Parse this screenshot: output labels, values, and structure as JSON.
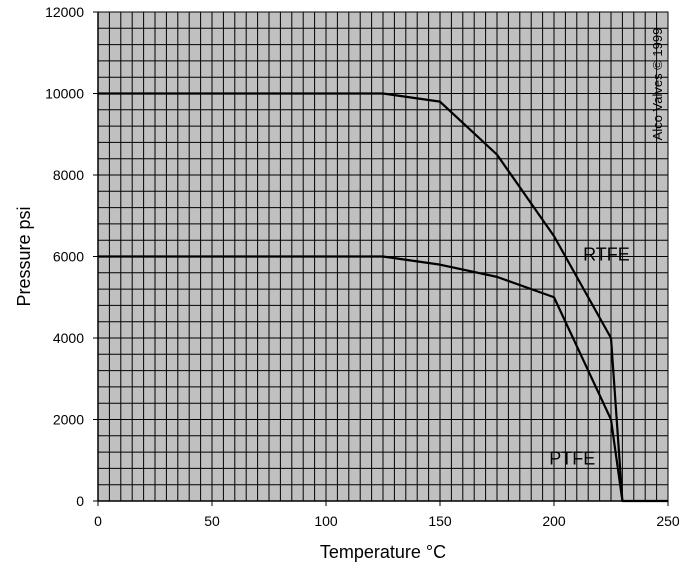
{
  "chart_data": {
    "type": "line",
    "title": "",
    "xlabel": "Temperature °C",
    "ylabel": "Pressure psi",
    "xlim": [
      0,
      250
    ],
    "ylim": [
      0,
      12000
    ],
    "xticks": [
      0,
      50,
      100,
      150,
      200,
      250
    ],
    "yticks": [
      0,
      2000,
      4000,
      6000,
      8000,
      10000,
      12000
    ],
    "minor_x_step": 5,
    "minor_y_step": 400,
    "grid": true,
    "plot_background": "#c0c0c0",
    "grid_color": "#000000",
    "line_color": "#000000",
    "annotation": "Alco Valves © 1999",
    "series": [
      {
        "name": "RTFE",
        "x": [
          0,
          125,
          150,
          175,
          200,
          225,
          230,
          250
        ],
        "y": [
          10000,
          10000,
          9800,
          8500,
          6500,
          4000,
          0,
          0
        ]
      },
      {
        "name": "PTFE",
        "x": [
          0,
          125,
          150,
          175,
          200,
          225,
          230
        ],
        "y": [
          6000,
          6000,
          5800,
          5500,
          5000,
          2000,
          0
        ]
      }
    ]
  }
}
